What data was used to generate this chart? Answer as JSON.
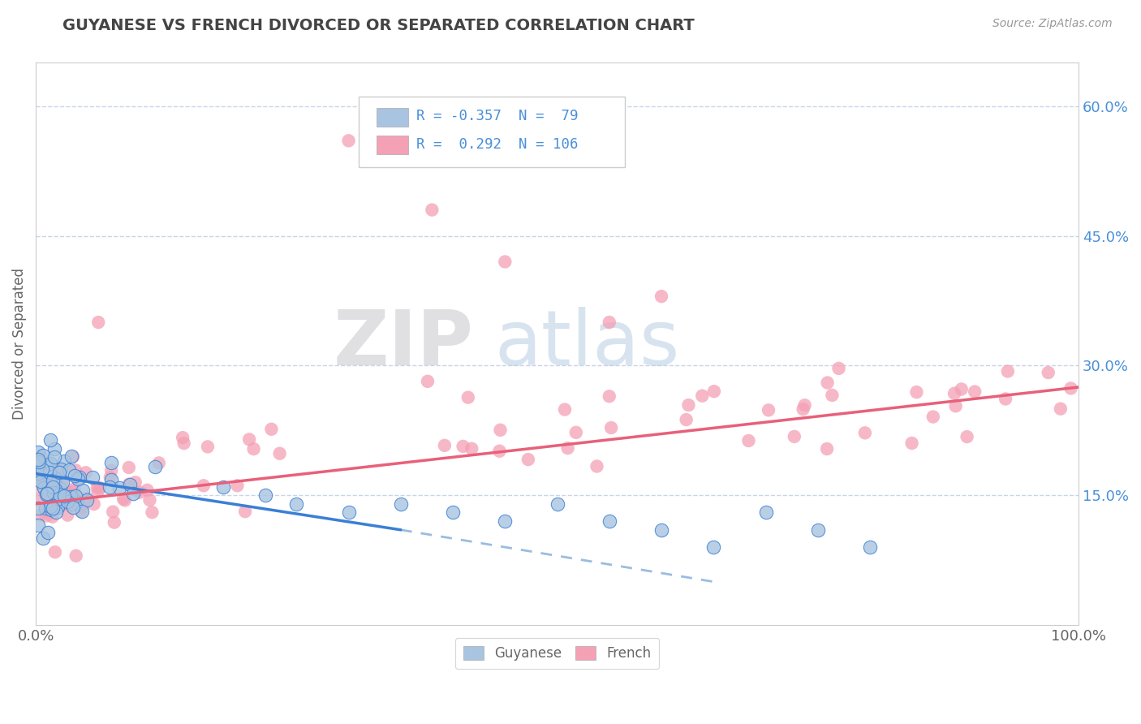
{
  "title": "GUYANESE VS FRENCH DIVORCED OR SEPARATED CORRELATION CHART",
  "source_text": "Source: ZipAtlas.com",
  "ylabel": "Divorced or Separated",
  "xlim": [
    0.0,
    100.0
  ],
  "ylim": [
    0.0,
    65.0
  ],
  "yticks_right": [
    15.0,
    30.0,
    45.0,
    60.0
  ],
  "ytick_labels_right": [
    "15.0%",
    "30.0%",
    "45.0%",
    "60.0%"
  ],
  "blue_color": "#a8c4e0",
  "pink_color": "#f4a0b5",
  "blue_line_color": "#3a7fd5",
  "pink_line_color": "#e8607a",
  "dashed_line_color": "#99bde0",
  "watermark_zip": "ZIP",
  "watermark_atlas": "atlas",
  "legend_R_blue": "-0.357",
  "legend_N_blue": "79",
  "legend_R_pink": "0.292",
  "legend_N_pink": "106",
  "background_color": "#ffffff",
  "grid_color": "#c8d4e8",
  "title_color": "#444444",
  "axis_label_color": "#666666",
  "right_tick_color": "#4a90d9",
  "legend_text_color": "#4a90d9",
  "blue_trend_x0": 0.0,
  "blue_trend_y0": 17.5,
  "blue_trend_x1": 35.0,
  "blue_trend_y1": 11.0,
  "blue_dash_x0": 35.0,
  "blue_dash_y0": 11.0,
  "blue_dash_x1": 65.0,
  "blue_dash_y1": 5.0,
  "pink_trend_x0": 0.0,
  "pink_trend_y0": 14.0,
  "pink_trend_x1": 100.0,
  "pink_trend_y1": 27.5
}
